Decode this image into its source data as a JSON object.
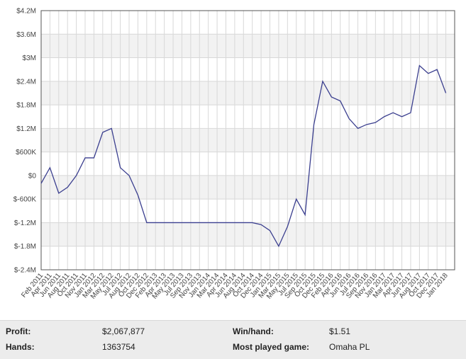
{
  "chart_data": {
    "type": "line",
    "categories": [
      "Feb 2011",
      "Apr 2011",
      "Jun 2011",
      "Aug 2011",
      "Oct 2011",
      "Nov 2011",
      "Jan 2012",
      "Mar 2012",
      "May 2012",
      "Jul 2012",
      "Aug 2012",
      "Oct 2012",
      "Dec 2012",
      "Feb 2013",
      "Apr 2013",
      "May 2013",
      "Jul 2013",
      "Sep 2013",
      "Nov 2013",
      "Jan 2014",
      "Mar 2014",
      "Apr 2014",
      "Jun 2014",
      "Aug 2014",
      "Oct 2014",
      "Dec 2014",
      "Jan 2015",
      "Mar 2015",
      "May 2015",
      "Jul 2015",
      "Sep 2015",
      "Oct 2015",
      "Dec 2015",
      "Feb 2016",
      "Apr 2016",
      "Jun 2016",
      "Jul 2016",
      "Sep 2016",
      "Nov 2016",
      "Jan 2017",
      "Mar 2017",
      "Apr 2017",
      "Jun 2017",
      "Aug 2017",
      "Oct 2017",
      "Dec 2017",
      "Jan 2018"
    ],
    "series": [
      {
        "color": "#3b3f8f",
        "values": [
          -200000,
          200000,
          -450000,
          -300000,
          0,
          450000,
          450000,
          1100000,
          1200000,
          200000,
          0,
          -500000,
          -1200000,
          -1200000,
          -1200000,
          -1200000,
          -1200000,
          -1200000,
          -1200000,
          -1200000,
          -1200000,
          -1200000,
          -1200000,
          -1200000,
          -1200000,
          -1250000,
          -1400000,
          -1800000,
          -1300000,
          -600000,
          -1000000,
          1300000,
          2400000,
          2000000,
          1900000,
          1450000,
          1200000,
          1300000,
          1350000,
          1500000,
          1600000,
          1500000,
          1600000,
          2800000,
          2600000,
          2700000,
          2100000
        ]
      }
    ],
    "ylim": [
      -2400000,
      4200000
    ],
    "yticks": [
      {
        "value": -2400000,
        "label": "$-2.4M"
      },
      {
        "value": -1800000,
        "label": "$-1.8M"
      },
      {
        "value": -1200000,
        "label": "$-1.2M"
      },
      {
        "value": -600000,
        "label": "$-600K"
      },
      {
        "value": 0,
        "label": "$0"
      },
      {
        "value": 600000,
        "label": "$600K"
      },
      {
        "value": 1200000,
        "label": "$1.2M"
      },
      {
        "value": 1800000,
        "label": "$1.8M"
      },
      {
        "value": 2400000,
        "label": "$2.4M"
      },
      {
        "value": 3000000,
        "label": "$3M"
      },
      {
        "value": 3600000,
        "label": "$3.6M"
      },
      {
        "value": 4200000,
        "label": "$4.2M"
      }
    ],
    "grid": true
  },
  "stats": [
    {
      "label": "Profit:",
      "value": "$2,067,877"
    },
    {
      "label": "Win/hand:",
      "value": "$1.51"
    },
    {
      "label": "Hands:",
      "value": "1363754"
    },
    {
      "label": "Most played game:",
      "value": "Omaha PL"
    }
  ]
}
